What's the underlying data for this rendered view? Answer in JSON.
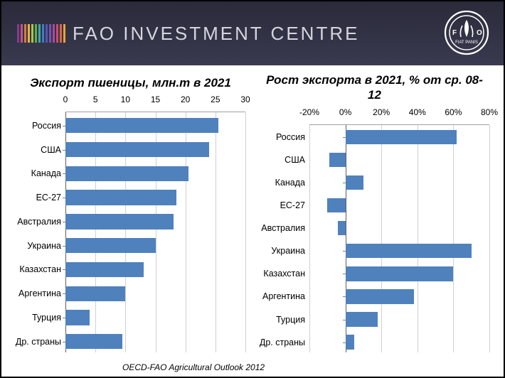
{
  "header": {
    "title": "FAO INVESTMENT CENTRE",
    "stripe_colors": [
      "#8b3a8b",
      "#c05588",
      "#d97a3e",
      "#e8b33e",
      "#a5c94e",
      "#5fb04e",
      "#3faaa5",
      "#3e7fc1",
      "#5158b5",
      "#7a52b0",
      "#a84b9b",
      "#c94b7a",
      "#d96a3e",
      "#e8a33e"
    ],
    "bg_gradient": [
      "#2a2a3a",
      "#3a3a50"
    ],
    "title_color": "#d5d5e0"
  },
  "logo": {
    "circle_color": "#ffffff",
    "name": "fao-logo"
  },
  "source": "OECD-FAO Agricultural Outlook 2012",
  "categories": [
    "Россия",
    "США",
    "Канада",
    "ЕС-27",
    "Австралия",
    "Украина",
    "Казахстан",
    "Аргентина",
    "Турция",
    "Др. страны"
  ],
  "chart_left": {
    "title": "Экспорт пшеницы, млн.т в 2021",
    "type": "bar-horizontal",
    "xmin": 0,
    "xmax": 30,
    "xtick_step": 5,
    "xticks": [
      "0",
      "5",
      "10",
      "15",
      "20",
      "25",
      "30"
    ],
    "values": [
      25.5,
      24.0,
      20.5,
      18.5,
      18.0,
      15.0,
      13.0,
      10.0,
      4.0,
      9.5
    ],
    "bar_color": "#4f81bd",
    "grid_color": "#d0d0d0",
    "axis_color": "#606060",
    "label_fontsize": 12.5,
    "tick_fontsize": 12
  },
  "chart_right": {
    "title": "Рост экспорта в 2021, % от ср. 08-12",
    "type": "bar-horizontal",
    "xmin": -20,
    "xmax": 80,
    "xtick_step": 20,
    "xticks": [
      "-20%",
      "0%",
      "20%",
      "40%",
      "60%",
      "80%"
    ],
    "values": [
      62,
      -9,
      10,
      -10,
      -4,
      70,
      60,
      38,
      18,
      5
    ],
    "bar_color": "#4f81bd",
    "grid_color": "#d0d0d0",
    "axis_color": "#606060",
    "label_fontsize": 12.5,
    "tick_fontsize": 12
  }
}
